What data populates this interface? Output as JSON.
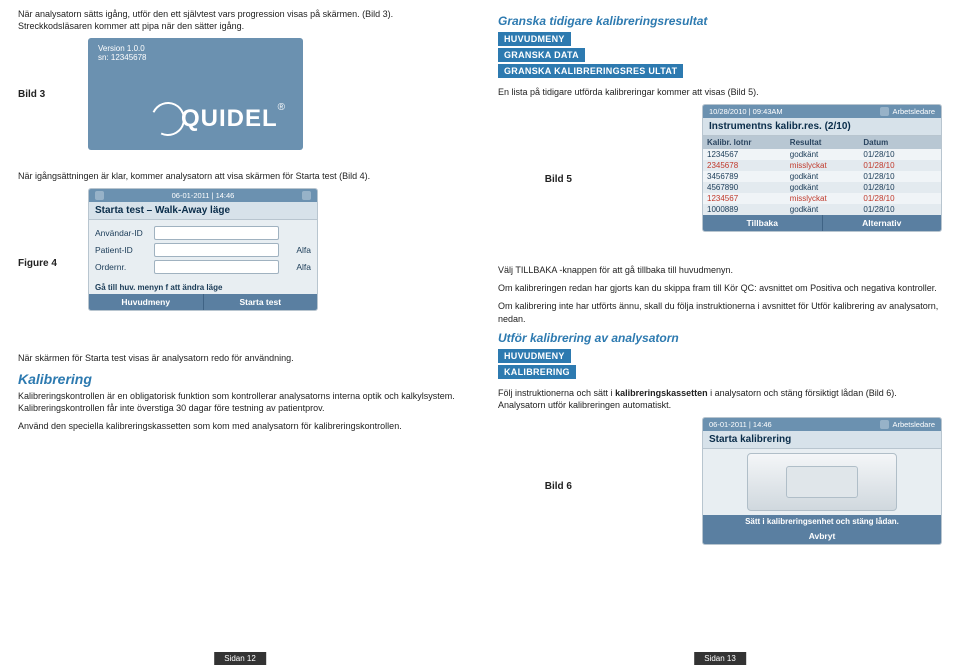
{
  "left": {
    "intro_text": "När analysatorn sätts igång, utför den ett självtest vars progression visas på skärmen. (Bild 3). Streckkodsläsaren kommer att pipa när den sätter igång.",
    "bild3_label": "Bild 3",
    "card3": {
      "version": "Version 1.0.0",
      "sn": "sn: 12345678",
      "brand": "QUIDEL"
    },
    "after3": "När igångsättningen är klar, kommer analysatorn att visa skärmen för Starta test (Bild 4).",
    "fig4_label": "Figure 4",
    "lcd4": {
      "datetime": "06-01-2011 | 14:46",
      "title": "Starta test – Walk-Away läge",
      "rows": [
        {
          "lbl": "Användar-ID",
          "unit": ""
        },
        {
          "lbl": "Patient-ID",
          "unit": "Alfa"
        },
        {
          "lbl": "Ordernr.",
          "unit": "Alfa"
        }
      ],
      "note": "Gå till huv. menyn f att ändra läge",
      "btns": [
        "Huvudmeny",
        "Starta test"
      ]
    },
    "after4a": "När skärmen för Starta test visas är analysatorn redo för användning.",
    "kal_title": "Kalibrering",
    "kal_p1": "Kalibreringskontrollen är en obligatorisk funktion som kontrollerar analysatorns interna optik och kalkylsystem. Kalibreringskontrollen får inte överstiga 30 dagar före testning av patientprov.",
    "kal_p2": "Använd den speciella kalibreringskassetten som kom med analysatorn för kalibreringskontrollen.",
    "footer": "Sidan 12"
  },
  "right": {
    "heading": "Granska tidigare kalibreringsresultat",
    "menu1": [
      "HUVUDMENY",
      "GRANSKA DATA",
      "GRANSKA KALIBRERINGSRES ULTAT"
    ],
    "after_menu1": "En lista på tidigare utförda kalibreringar kommer att visas (Bild 5).",
    "bild5_label": "Bild 5",
    "lcd5": {
      "datetime": "10/28/2010 | 09:43AM",
      "role": "Arbetsledare",
      "title": "Instrumentns kalibr.res. (2/10)",
      "cols": [
        "Kalibr. lotnr",
        "Resultat",
        "Datum"
      ],
      "rows": [
        {
          "lot": "1234567",
          "res": "godkänt",
          "date": "01/28/10",
          "fail": false
        },
        {
          "lot": "2345678",
          "res": "misslyckat",
          "date": "01/28/10",
          "fail": true
        },
        {
          "lot": "3456789",
          "res": "godkänt",
          "date": "01/28/10",
          "fail": false
        },
        {
          "lot": "4567890",
          "res": "godkänt",
          "date": "01/28/10",
          "fail": false
        },
        {
          "lot": "1234567",
          "res": "misslyckat",
          "date": "01/28/10",
          "fail": true
        },
        {
          "lot": "1000889",
          "res": "godkänt",
          "date": "01/28/10",
          "fail": false
        }
      ],
      "btns": [
        "Tillbaka",
        "Alternativ"
      ]
    },
    "after5_p1": "Välj TILLBAKA -knappen för att gå tillbaka till huvudmenyn.",
    "after5_p2": "Om kalibreringen redan har gjorts kan du skippa fram till Kör QC: avsnittet om Positiva och negativa kontroller.",
    "after5_p3": "Om kalibrering inte har utförts ännu, skall du följa instruktionerna i avsnittet för Utför kalibrering av analysatorn, nedan.",
    "heading2": "Utför kalibrering av analysatorn",
    "menu2": [
      "HUVUDMENY",
      "KALIBRERING"
    ],
    "after_menu2_a": "Följ instruktionerna och sätt i ",
    "after_menu2_bold": "kalibreringskassetten",
    "after_menu2_b": " i analysatorn och stäng försiktigt lådan (Bild 6). Analysatorn utför kalibreringen automatiskt.",
    "bild6_label": "Bild 6",
    "lcd6": {
      "datetime": "06-01-2011 | 14:46",
      "role": "Arbetsledare",
      "title": "Starta kalibrering",
      "band": "Sätt i kalibreringsenhet och stäng lådan.",
      "btn": "Avbryt"
    },
    "footer": "Sidan 13"
  }
}
